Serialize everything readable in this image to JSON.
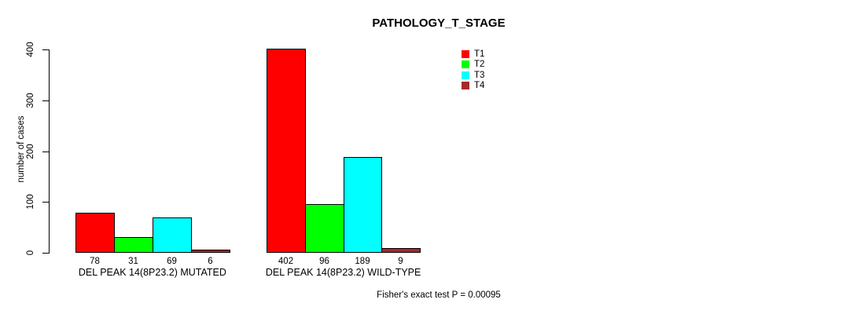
{
  "chart_data": {
    "type": "bar",
    "title": "PATHOLOGY_T_STAGE",
    "xlabel": "",
    "ylabel": "number of cases",
    "categories": [
      "DEL PEAK 14(8P23.2) MUTATED",
      "DEL PEAK 14(8P23.2) WILD-TYPE"
    ],
    "series": [
      {
        "name": "T1",
        "color": "#FF0000",
        "values": [
          78,
          402
        ]
      },
      {
        "name": "T2",
        "color": "#00FF00",
        "values": [
          31,
          96
        ]
      },
      {
        "name": "T3",
        "color": "#00FFFF",
        "values": [
          69,
          189
        ]
      },
      {
        "name": "T4",
        "color": "#A52A2A",
        "values": [
          6,
          9
        ]
      }
    ],
    "yticks": [
      0,
      100,
      200,
      300,
      400
    ],
    "ylim": [
      0,
      400
    ],
    "grid": false,
    "bar_value_labels": true,
    "legend_position": "top-right",
    "annotation": "Fisher's exact test P = 0.00095"
  },
  "colors": {
    "axis": "#000000",
    "text": "#000000",
    "background": "#FFFFFF"
  }
}
